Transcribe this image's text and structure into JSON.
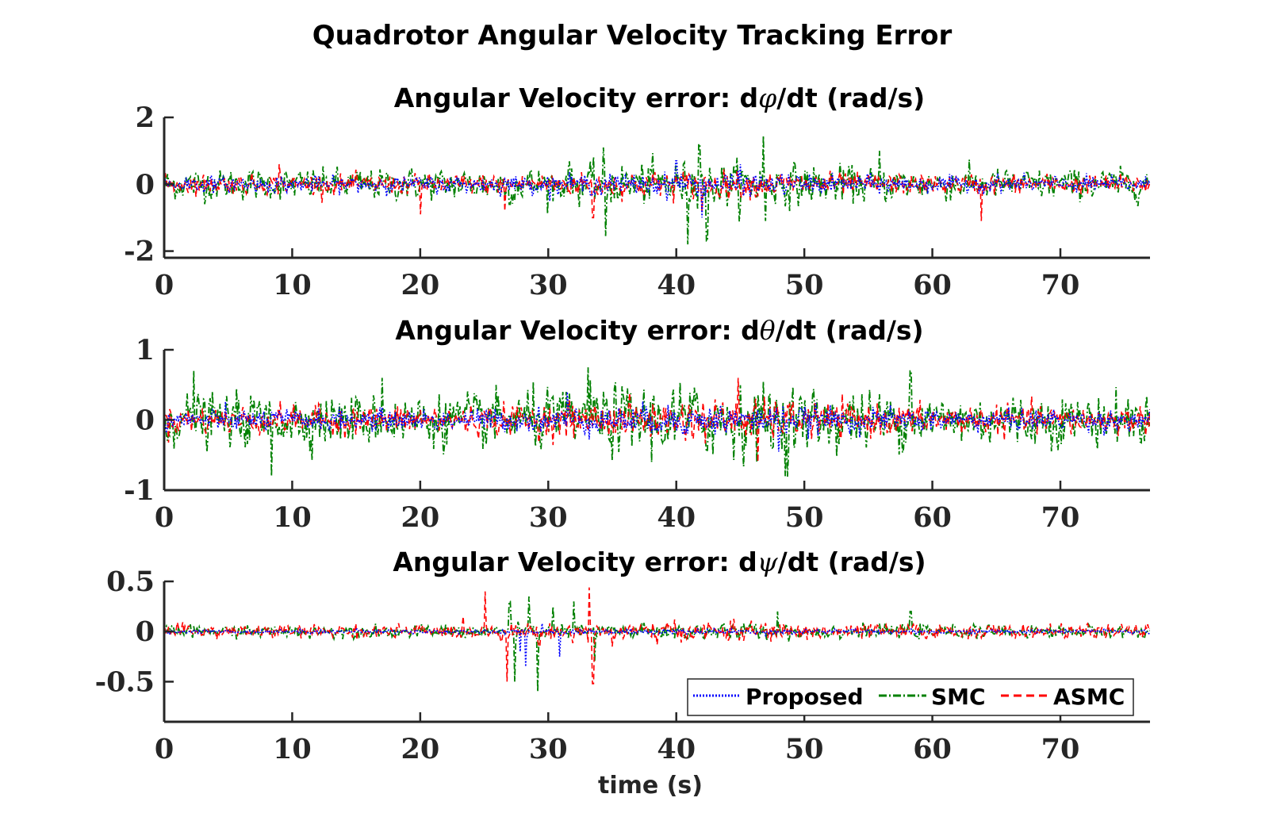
{
  "figure": {
    "title": "Quadrotor Angular Velocity Tracking Error",
    "xlabel": "time (s)"
  },
  "legend": {
    "items": [
      {
        "label": "Proposed",
        "color": "#0000ff",
        "style": "dotted"
      },
      {
        "label": "SMC",
        "color": "#008000",
        "style": "dashdot"
      },
      {
        "label": "ASMC",
        "color": "#ff0000",
        "style": "dashed"
      }
    ]
  },
  "chart_data": [
    {
      "type": "line",
      "title": "Angular Velocity error: dφ/dt (rad/s)",
      "title_parts": [
        "Angular Velocity error: d",
        "φ",
        "/dt (rad/s)"
      ],
      "xlim": [
        0,
        77
      ],
      "ylim": [
        -2.2,
        2
      ],
      "xticks": [
        0,
        10,
        20,
        30,
        40,
        50,
        60,
        70
      ],
      "yticks": [
        -2,
        0,
        2
      ],
      "ytick_labels": [
        "-2",
        "0",
        "2"
      ],
      "series": [
        {
          "name": "Proposed",
          "noise_std": 0.14,
          "peaks": [
            [
              40,
              0.7
            ],
            [
              45,
              0.6
            ],
            [
              42,
              -1.0
            ]
          ]
        },
        {
          "name": "SMC",
          "noise_std": 0.28,
          "peaks": [
            [
              34.3,
              1.1
            ],
            [
              34.5,
              -1.55
            ],
            [
              40.9,
              -1.8
            ],
            [
              41.8,
              1.2
            ],
            [
              46.8,
              1.45
            ],
            [
              47,
              -1.1
            ],
            [
              42.4,
              -1.7
            ],
            [
              55.9,
              1.0
            ],
            [
              31.6,
              0.5
            ],
            [
              27,
              -0.6
            ]
          ]
        },
        {
          "name": "ASMC",
          "noise_std": 0.17,
          "peaks": [
            [
              9,
              0.6
            ],
            [
              20,
              -0.9
            ],
            [
              26.6,
              -0.8
            ],
            [
              33.5,
              -1.0
            ],
            [
              63.8,
              -1.1
            ],
            [
              42,
              -0.8
            ]
          ]
        }
      ]
    },
    {
      "type": "line",
      "title": "Angular Velocity error: dθ/dt (rad/s)",
      "title_parts": [
        "Angular Velocity error: d",
        "θ",
        "/dt (rad/s)"
      ],
      "xlim": [
        0,
        77
      ],
      "ylim": [
        -1,
        1
      ],
      "xticks": [
        0,
        10,
        20,
        30,
        40,
        50,
        60,
        70
      ],
      "yticks": [
        -1,
        0,
        1
      ],
      "ytick_labels": [
        "-1",
        "0",
        "1"
      ],
      "series": [
        {
          "name": "Proposed",
          "noise_std": 0.09,
          "peaks": [
            [
              31.5,
              0.4
            ],
            [
              48,
              -0.45
            ]
          ]
        },
        {
          "name": "SMC",
          "noise_std": 0.22,
          "peaks": [
            [
              2.3,
              0.7
            ],
            [
              8.4,
              -0.8
            ],
            [
              33.1,
              0.75
            ],
            [
              48.5,
              -0.8
            ],
            [
              58.3,
              0.7
            ],
            [
              17,
              0.6
            ]
          ]
        },
        {
          "name": "ASMC",
          "noise_std": 0.12,
          "peaks": [
            [
              44.8,
              0.6
            ],
            [
              46.4,
              -0.6
            ]
          ]
        }
      ]
    },
    {
      "type": "line",
      "title": "Angular Velocity error: dψ/dt (rad/s)",
      "title_parts": [
        "Angular Velocity error: d",
        "ψ",
        "/dt (rad/s)"
      ],
      "xlim": [
        0,
        77
      ],
      "ylim": [
        -0.9,
        0.5
      ],
      "xticks": [
        0,
        10,
        20,
        30,
        40,
        50,
        60,
        70
      ],
      "yticks": [
        -0.5,
        0,
        0.5
      ],
      "ytick_labels": [
        "-0.5",
        "0",
        "0.5"
      ],
      "series": [
        {
          "name": "Proposed",
          "noise_std": 0.012,
          "peaks": [
            [
              27.8,
              -0.2
            ],
            [
              28.2,
              -0.35
            ],
            [
              30.9,
              -0.25
            ],
            [
              29.5,
              0.08
            ]
          ]
        },
        {
          "name": "SMC",
          "noise_std": 0.035,
          "peaks": [
            [
              27,
              0.3
            ],
            [
              27.4,
              -0.5
            ],
            [
              28.5,
              0.35
            ],
            [
              29.2,
              -0.6
            ],
            [
              30.4,
              0.25
            ],
            [
              32,
              0.3
            ],
            [
              33.6,
              -0.3
            ],
            [
              47.9,
              0.2
            ],
            [
              58.3,
              0.2
            ]
          ]
        },
        {
          "name": "ASMC",
          "noise_std": 0.04,
          "peaks": [
            [
              25.1,
              0.4
            ],
            [
              26.8,
              -0.5
            ],
            [
              33.2,
              0.44
            ],
            [
              33.5,
              -0.52
            ],
            [
              29.3,
              -0.15
            ],
            [
              35,
              -0.15
            ]
          ]
        }
      ]
    }
  ]
}
